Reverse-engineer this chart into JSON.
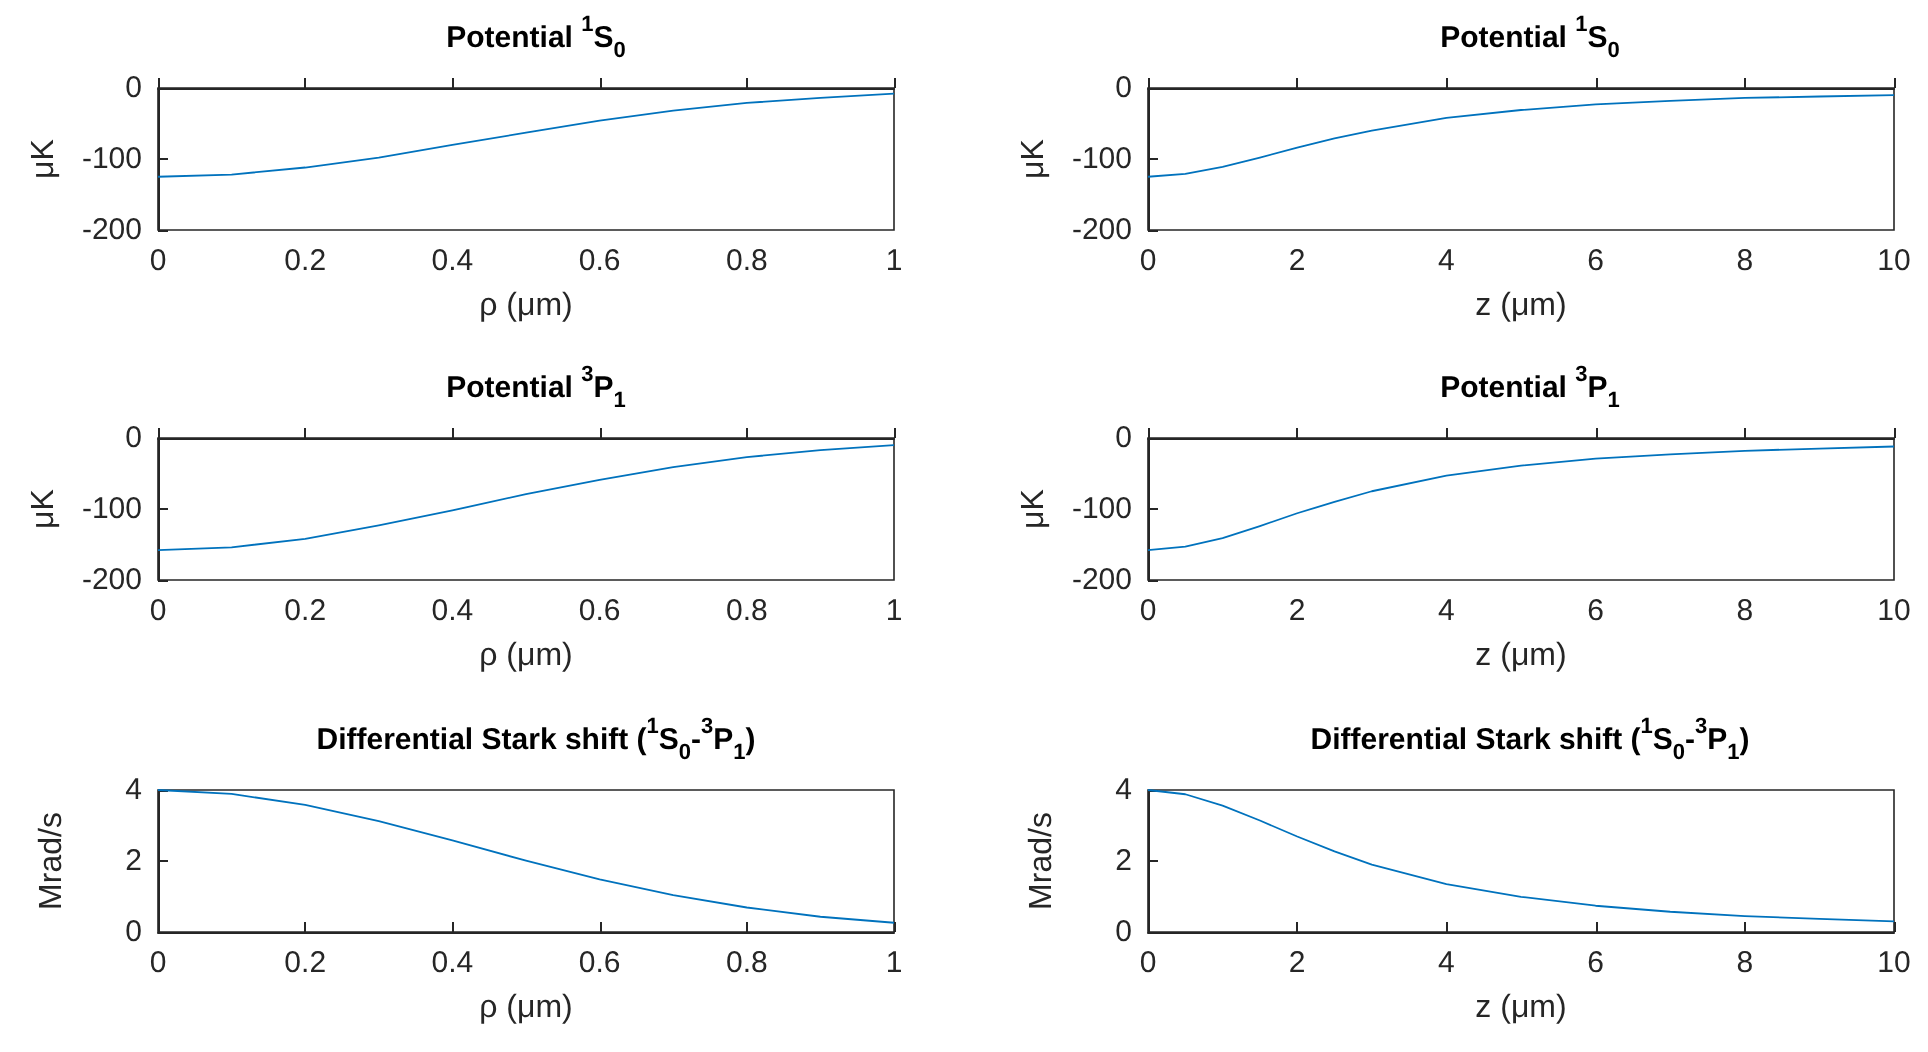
{
  "chart_data": [
    {
      "type": "line",
      "title": "Potential $^{1}$S$_{0}$",
      "xlabel": "ρ (μm)",
      "ylabel": "μK",
      "xlim": [
        0,
        1
      ],
      "xticks": [
        0,
        0.2,
        0.4,
        0.6,
        0.8,
        1
      ],
      "ylim": [
        -200,
        0
      ],
      "yticks": [
        -200,
        -100,
        0
      ],
      "series": [
        {
          "color": "#0072bd",
          "x": [
            0,
            0.1,
            0.2,
            0.3,
            0.4,
            0.5,
            0.6,
            0.7,
            0.8,
            0.9,
            1
          ],
          "values": [
            -125,
            -122,
            -112,
            -98,
            -80,
            -63,
            -46,
            -32,
            -21,
            -14,
            -8
          ]
        }
      ]
    },
    {
      "type": "line",
      "title": "Potential $^{1}$S$_{0}$",
      "xlabel": "z (μm)",
      "ylabel": "μK",
      "xlim": [
        0,
        10
      ],
      "xticks": [
        0,
        2,
        4,
        6,
        8,
        10
      ],
      "ylim": [
        -200,
        0
      ],
      "yticks": [
        -200,
        -100,
        0
      ],
      "series": [
        {
          "color": "#0072bd",
          "x": [
            0,
            0.5,
            1,
            1.5,
            2,
            2.5,
            3,
            4,
            5,
            6,
            7,
            8,
            9,
            10
          ],
          "values": [
            -125,
            -121,
            -111,
            -98,
            -84,
            -71,
            -60,
            -42,
            -31,
            -23,
            -18,
            -14,
            -12,
            -10
          ]
        }
      ]
    },
    {
      "type": "line",
      "title": "Potential $^{3}$P$_{1}$",
      "xlabel": "ρ (μm)",
      "ylabel": "μK",
      "xlim": [
        0,
        1
      ],
      "xticks": [
        0,
        0.2,
        0.4,
        0.6,
        0.8,
        1
      ],
      "ylim": [
        -200,
        0
      ],
      "yticks": [
        -200,
        -100,
        0
      ],
      "series": [
        {
          "color": "#0072bd",
          "x": [
            0,
            0.1,
            0.2,
            0.3,
            0.4,
            0.5,
            0.6,
            0.7,
            0.8,
            0.9,
            1
          ],
          "values": [
            -158,
            -154,
            -142,
            -123,
            -102,
            -79,
            -59,
            -41,
            -27,
            -17,
            -10
          ]
        }
      ]
    },
    {
      "type": "line",
      "title": "Potential $^{3}$P$_{1}$",
      "xlabel": "z (μm)",
      "ylabel": "μK",
      "xlim": [
        0,
        10
      ],
      "xticks": [
        0,
        2,
        4,
        6,
        8,
        10
      ],
      "ylim": [
        -200,
        0
      ],
      "yticks": [
        -200,
        -100,
        0
      ],
      "series": [
        {
          "color": "#0072bd",
          "x": [
            0,
            0.5,
            1,
            1.5,
            2,
            2.5,
            3,
            4,
            5,
            6,
            7,
            8,
            9,
            10
          ],
          "values": [
            -158,
            -153,
            -141,
            -124,
            -106,
            -90,
            -75,
            -53,
            -39,
            -29,
            -23,
            -18,
            -15,
            -12
          ]
        }
      ]
    },
    {
      "type": "line",
      "title": "Differential Stark shift ($^{1}$S$_{0}$-$^{3}$P$_{1}$)",
      "xlabel": "ρ (μm)",
      "ylabel": "Mrad/s",
      "xlim": [
        0,
        1
      ],
      "xticks": [
        0,
        0.2,
        0.4,
        0.6,
        0.8,
        1
      ],
      "ylim": [
        0,
        4
      ],
      "yticks": [
        0,
        2,
        4
      ],
      "series": [
        {
          "color": "#0072bd",
          "x": [
            0,
            0.1,
            0.2,
            0.3,
            0.4,
            0.5,
            0.6,
            0.7,
            0.8,
            0.9,
            1
          ],
          "values": [
            4,
            3.89,
            3.58,
            3.12,
            2.58,
            2.01,
            1.48,
            1.04,
            0.69,
            0.43,
            0.26
          ]
        }
      ]
    },
    {
      "type": "line",
      "title": "Differential Stark shift ($^{1}$S$_{0}$-$^{3}$P$_{1}$)",
      "xlabel": "z (μm)",
      "ylabel": "Mrad/s",
      "xlim": [
        0,
        10
      ],
      "xticks": [
        0,
        2,
        4,
        6,
        8,
        10
      ],
      "ylim": [
        0,
        4
      ],
      "yticks": [
        0,
        2,
        4
      ],
      "series": [
        {
          "color": "#0072bd",
          "x": [
            0,
            0.5,
            1,
            1.5,
            2,
            2.5,
            3,
            4,
            5,
            6,
            7,
            8,
            9,
            10
          ],
          "values": [
            4,
            3.88,
            3.56,
            3.14,
            2.69,
            2.27,
            1.9,
            1.35,
            0.99,
            0.74,
            0.57,
            0.45,
            0.37,
            0.3
          ]
        }
      ]
    }
  ]
}
